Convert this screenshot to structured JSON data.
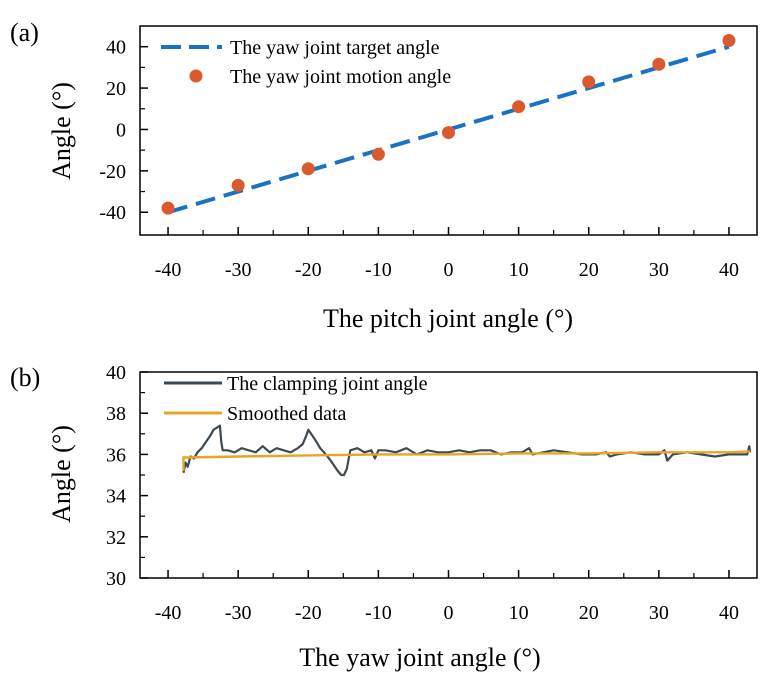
{
  "chart_data": [
    {
      "panel_label": "(a)",
      "type": "line",
      "xlabel": "The pitch joint angle (°)",
      "ylabel": "Angle (°)",
      "xlim": [
        -44,
        44
      ],
      "ylim": [
        -51,
        50
      ],
      "xticks": [
        -40,
        -30,
        -20,
        -10,
        0,
        10,
        20,
        30,
        40
      ],
      "yticks": [
        -40,
        -20,
        0,
        20,
        40
      ],
      "legend_position": "top-left",
      "colors": {
        "target": "#1a72c3",
        "motion": "#db5a2d"
      },
      "series": [
        {
          "name": "The yaw joint target angle",
          "style": "dashed-line",
          "x": [
            -40,
            40
          ],
          "y": [
            -40,
            40
          ]
        },
        {
          "name": "The yaw joint motion angle",
          "style": "markers",
          "x": [
            -40,
            -30,
            -20,
            -10,
            0,
            10,
            20,
            30,
            40
          ],
          "y": [
            -38,
            -27,
            -19,
            -12,
            -1.5,
            11,
            23,
            31.5,
            43
          ]
        }
      ]
    },
    {
      "panel_label": "(b)",
      "type": "line",
      "xlabel": "The yaw joint angle (°)",
      "ylabel": "Angle (°)",
      "xlim": [
        -44,
        44
      ],
      "ylim": [
        30,
        40
      ],
      "xticks": [
        -40,
        -30,
        -20,
        -10,
        0,
        10,
        20,
        30,
        40
      ],
      "yticks": [
        30,
        32,
        34,
        36,
        38,
        40
      ],
      "legend_position": "top-left",
      "colors": {
        "raw": "#3c4a55",
        "smooth": "#e6a623"
      },
      "series": [
        {
          "name": "The clamping joint angle",
          "x": [
            -37.8,
            -37.5,
            -37.2,
            -36.8,
            -36.3,
            -35.8,
            -35.2,
            -34.6,
            -34.0,
            -33.5,
            -33.0,
            -32.6,
            -32.4,
            -32.2,
            -31.5,
            -30.5,
            -29.5,
            -28.5,
            -27.5,
            -26.5,
            -25.5,
            -24.5,
            -23.5,
            -22.5,
            -21.5,
            -20.8,
            -20.3,
            -20.0,
            -19.6,
            -19.0,
            -18.3,
            -17.5,
            -16.8,
            -16.2,
            -15.8,
            -15.3,
            -14.9,
            -14.5,
            -14.0,
            -13.0,
            -12.0,
            -11.0,
            -10.5,
            -10.0,
            -9.0,
            -7.5,
            -6.0,
            -4.5,
            -3.0,
            -1.5,
            0.0,
            1.5,
            3.0,
            4.5,
            6.0,
            7.5,
            9.0,
            10.5,
            11.5,
            12.0,
            13.5,
            15.0,
            17.0,
            19.0,
            21.0,
            22.5,
            23.0,
            24.0,
            26.0,
            28.0,
            30.0,
            30.8,
            31.2,
            32.0,
            34.0,
            36.0,
            38.0,
            40.0,
            42.0,
            42.6,
            42.9,
            43.0
          ],
          "y": [
            35.1,
            35.6,
            35.4,
            35.9,
            35.8,
            36.1,
            36.3,
            36.6,
            36.9,
            37.2,
            37.3,
            37.4,
            36.6,
            36.2,
            36.2,
            36.1,
            36.3,
            36.2,
            36.1,
            36.4,
            36.1,
            36.3,
            36.2,
            36.1,
            36.3,
            36.5,
            36.9,
            37.2,
            37.0,
            36.7,
            36.3,
            36.0,
            35.7,
            35.4,
            35.2,
            35.0,
            35.0,
            35.3,
            36.2,
            36.3,
            36.1,
            36.2,
            35.8,
            36.2,
            36.2,
            36.1,
            36.3,
            36.0,
            36.2,
            36.1,
            36.1,
            36.2,
            36.1,
            36.2,
            36.2,
            36.0,
            36.1,
            36.1,
            36.3,
            36.0,
            36.1,
            36.2,
            36.1,
            36.0,
            36.0,
            36.1,
            35.9,
            36.0,
            36.1,
            36.0,
            36.0,
            36.2,
            35.7,
            36.0,
            36.1,
            36.0,
            35.9,
            36.0,
            36.0,
            36.0,
            36.4,
            36.1
          ]
        },
        {
          "name": "Smoothed data",
          "x": [
            -37.8,
            -37.8,
            -37.5,
            -30.0,
            -20.0,
            -10.0,
            0.0,
            10.0,
            20.0,
            30.0,
            40.0,
            43.0
          ],
          "y": [
            35.2,
            35.85,
            35.85,
            35.9,
            35.95,
            36.0,
            36.0,
            36.05,
            36.05,
            36.1,
            36.1,
            36.15
          ]
        }
      ]
    }
  ]
}
